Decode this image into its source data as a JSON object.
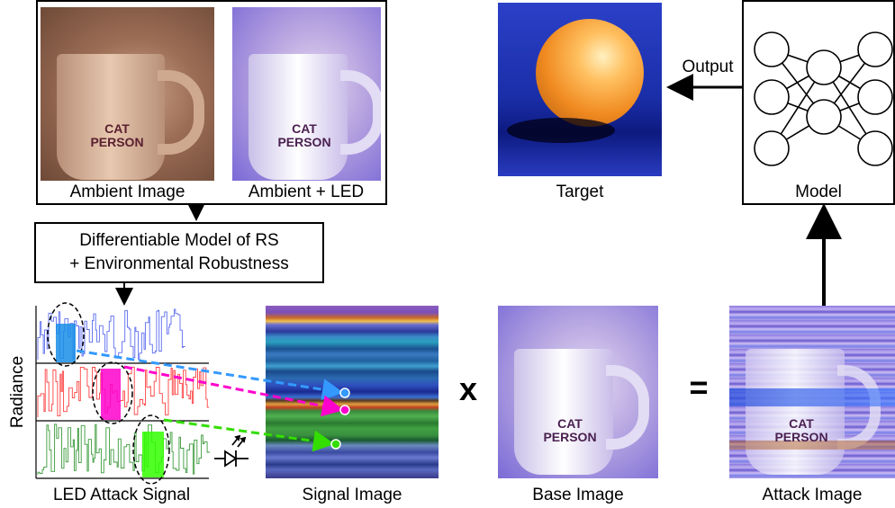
{
  "labels": {
    "ambient_image": "Ambient Image",
    "ambient_led": "Ambient + LED",
    "target": "Target",
    "model": "Model",
    "output": "Output",
    "rs_model_line1": "Differentiable Model of RS",
    "rs_model_line2": "+ Environmental Robustness",
    "radiance": "Radiance",
    "led_attack_signal": "LED Attack Signal",
    "signal_image": "Signal Image",
    "base_image": "Base Image",
    "attack_image": "Attack Image",
    "multiply_op": "x",
    "equals_op": "="
  },
  "mug_text": {
    "line1": "CAT",
    "line2": "PERSON"
  },
  "signal_colors": {
    "blue": "#5b6cf0",
    "red": "#ff4040",
    "green": "#3a9a3a",
    "magenta": "#ff00cc",
    "lime": "#33ff00",
    "cyan": "#3399ff"
  }
}
